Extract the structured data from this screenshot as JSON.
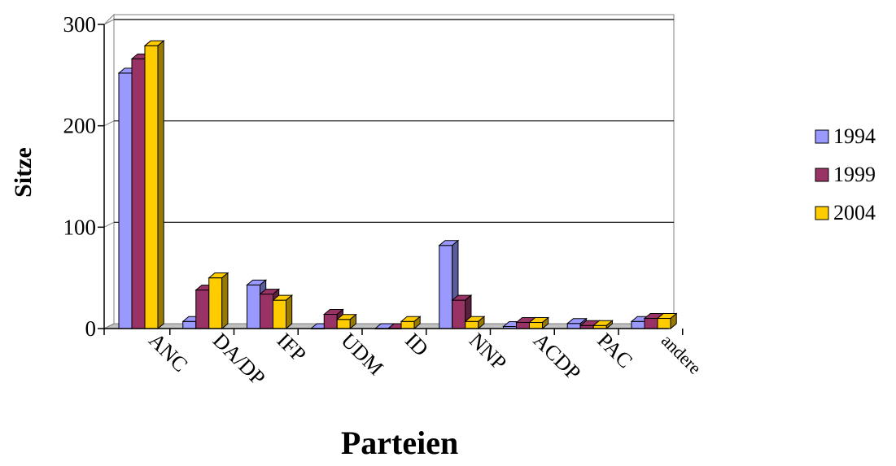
{
  "chart_data": {
    "type": "bar",
    "title": "",
    "xlabel": "Parteien",
    "ylabel": "Sitze",
    "ylim": [
      0,
      300
    ],
    "yticks": [
      "0",
      "100",
      "200",
      "300"
    ],
    "grid": true,
    "legend_position": "right",
    "categories": [
      "ANC",
      "DA/DP",
      "IFP",
      "UDM",
      "ID",
      "NNP",
      "ACDP",
      "PAC",
      "andere"
    ],
    "series": [
      {
        "name": "1994",
        "color": "#9999ff",
        "values": [
          252,
          7,
          43,
          0,
          0,
          82,
          2,
          5,
          7
        ]
      },
      {
        "name": "1999",
        "color": "#993366",
        "values": [
          266,
          38,
          34,
          14,
          0,
          28,
          6,
          3,
          10
        ]
      },
      {
        "name": "2004",
        "color": "#ffcc00",
        "values": [
          279,
          50,
          28,
          9,
          7,
          7,
          6,
          3,
          10
        ]
      }
    ]
  }
}
